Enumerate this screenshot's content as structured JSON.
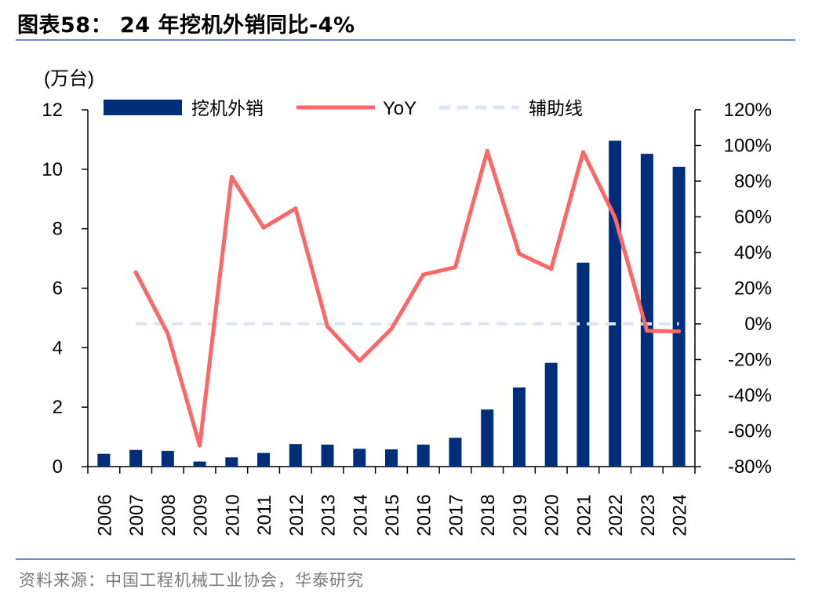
{
  "header": {
    "title": "图表58：  24 年挖机外销同比-4%"
  },
  "footer": {
    "source": "资料来源：中国工程机械工业协会，华泰研究"
  },
  "colors": {
    "bar": "#002E7A",
    "line": "#FF6666",
    "guide": "#DAE6F6",
    "rule": "#6d8fbf"
  },
  "chart_data": {
    "type": "bar",
    "unit_label": "(万台)",
    "categories": [
      "2006",
      "2007",
      "2008",
      "2009",
      "2010",
      "2011",
      "2012",
      "2013",
      "2014",
      "2015",
      "2016",
      "2017",
      "2018",
      "2019",
      "2020",
      "2021",
      "2022",
      "2023",
      "2024"
    ],
    "series": [
      {
        "name": "挖机外销",
        "type": "bar",
        "axis": "left",
        "values": [
          0.43,
          0.56,
          0.53,
          0.17,
          0.31,
          0.46,
          0.76,
          0.74,
          0.6,
          0.58,
          0.74,
          0.97,
          1.92,
          2.66,
          3.49,
          6.86,
          10.96,
          10.52,
          10.08
        ]
      },
      {
        "name": "YoY",
        "type": "line",
        "axis": "right",
        "values": [
          null,
          28.9,
          -5.4,
          -68.2,
          82.4,
          53.9,
          64.7,
          -1.6,
          -20.7,
          -2.8,
          27.6,
          31.8,
          96.9,
          39.3,
          30.8,
          96.3,
          59.5,
          -3.9,
          -4.2
        ]
      },
      {
        "name": "辅助线",
        "type": "line",
        "style": "dashed",
        "axis": "right",
        "values": [
          null,
          0,
          0,
          0,
          0,
          0,
          0,
          0,
          0,
          0,
          0,
          0,
          0,
          0,
          0,
          0,
          0,
          0,
          0
        ]
      }
    ],
    "y_left": {
      "min": 0,
      "max": 12,
      "ticks": [
        "0",
        "2",
        "4",
        "6",
        "8",
        "10",
        "12"
      ]
    },
    "y_right": {
      "min": -80,
      "max": 120,
      "ticks": [
        "-80%",
        "-60%",
        "-40%",
        "-20%",
        "0%",
        "20%",
        "40%",
        "60%",
        "80%",
        "100%",
        "120%"
      ]
    },
    "legend_position": "top",
    "grid": false
  }
}
